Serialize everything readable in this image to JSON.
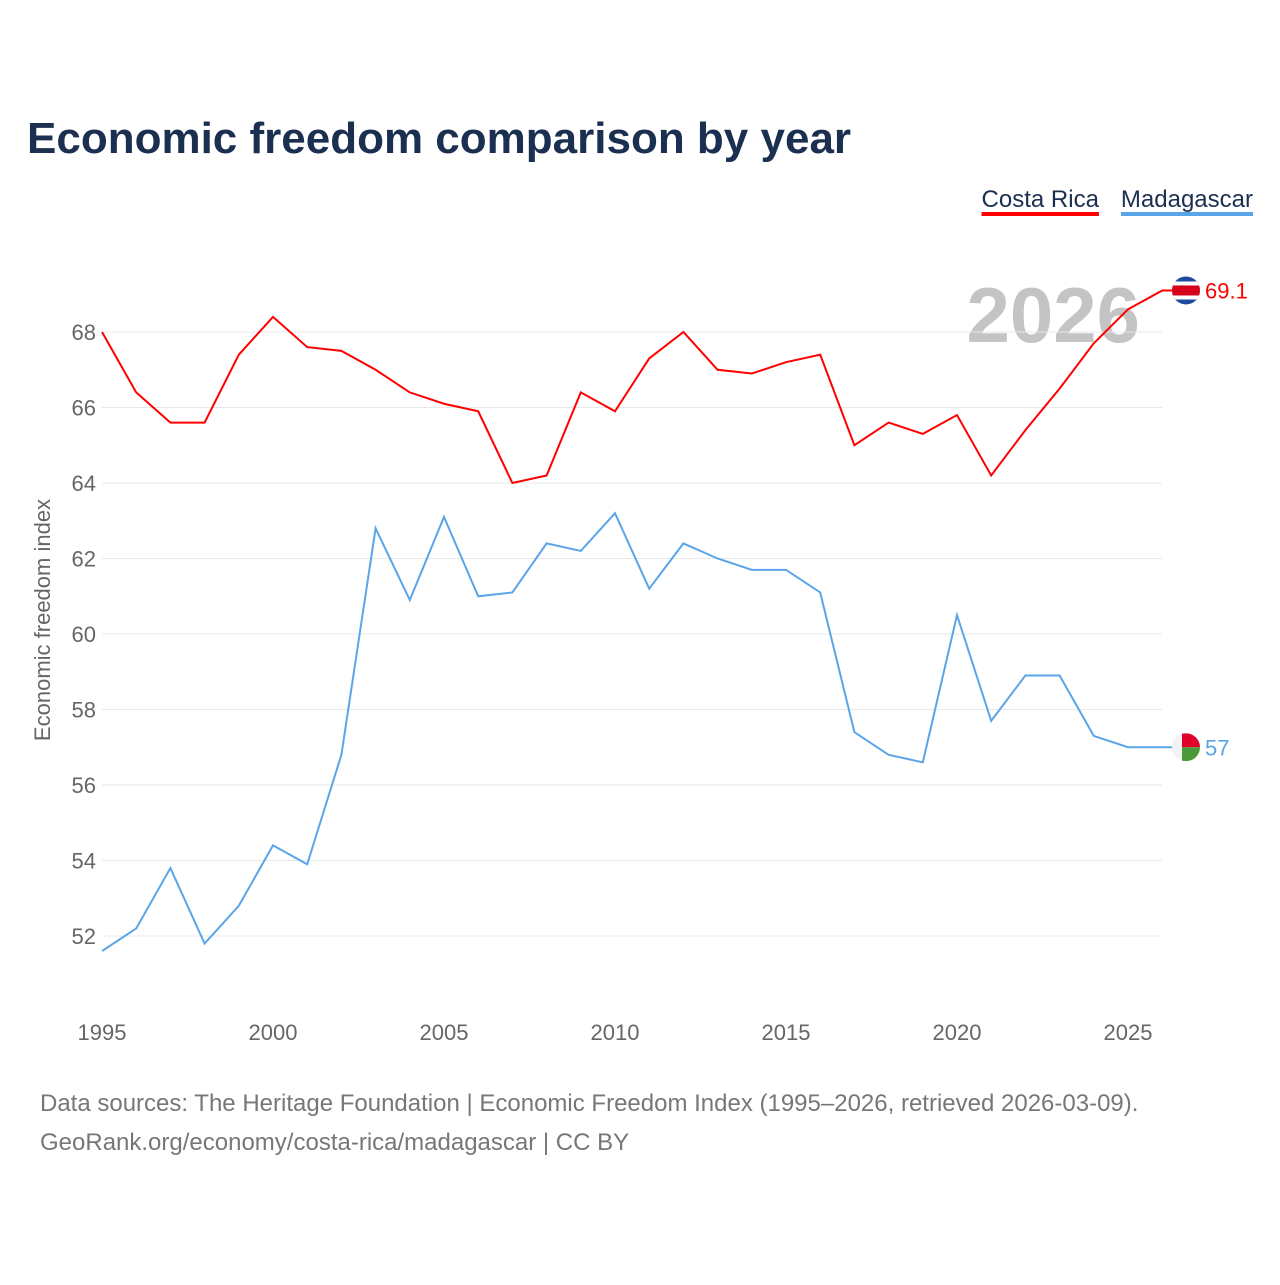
{
  "chart_data": {
    "type": "line",
    "title": "Economic freedom comparison by year",
    "xlabel": "",
    "ylabel": "Economic freedom index",
    "xlim": [
      1995,
      2026
    ],
    "ylim": [
      50.5,
      70
    ],
    "x_ticks": [
      1995,
      2000,
      2005,
      2010,
      2015,
      2020,
      2025
    ],
    "y_ticks": [
      52,
      54,
      56,
      58,
      60,
      62,
      64,
      66,
      68
    ],
    "grid": true,
    "legend_position": "top-right",
    "year_watermark": "2026",
    "x": [
      1995,
      1996,
      1997,
      1998,
      1999,
      2000,
      2001,
      2002,
      2003,
      2004,
      2005,
      2006,
      2007,
      2008,
      2009,
      2010,
      2011,
      2012,
      2013,
      2014,
      2015,
      2016,
      2017,
      2018,
      2019,
      2020,
      2021,
      2022,
      2023,
      2024,
      2025,
      2026
    ],
    "series": [
      {
        "name": "Costa Rica",
        "color": "#ff0000",
        "end_label": "69.1",
        "flag": "costa-rica-flag",
        "values": [
          68.0,
          66.4,
          65.6,
          65.6,
          67.4,
          68.4,
          67.6,
          67.5,
          67.0,
          66.4,
          66.1,
          65.9,
          64.0,
          64.2,
          66.4,
          65.9,
          67.3,
          68.0,
          67.0,
          66.9,
          67.2,
          67.4,
          65.0,
          65.6,
          65.3,
          65.8,
          64.2,
          65.4,
          66.5,
          67.7,
          68.6,
          69.1
        ]
      },
      {
        "name": "Madagascar",
        "color": "#5aa5e8",
        "end_label": "57",
        "flag": "madagascar-flag",
        "values": [
          51.6,
          52.2,
          53.8,
          51.8,
          52.8,
          54.4,
          53.9,
          56.8,
          62.8,
          60.9,
          63.1,
          61.0,
          61.1,
          62.4,
          62.2,
          63.2,
          61.2,
          62.4,
          62.0,
          61.7,
          61.7,
          61.1,
          57.4,
          56.8,
          56.6,
          60.5,
          57.7,
          58.9,
          58.9,
          57.3,
          57.0,
          57.0
        ]
      }
    ]
  },
  "footer": {
    "source": "Data sources: The Heritage Foundation | Economic Freedom Index (1995–2026, retrieved 2026-03-09).",
    "link": "GeoRank.org/economy/costa-rica/madagascar | CC BY"
  }
}
